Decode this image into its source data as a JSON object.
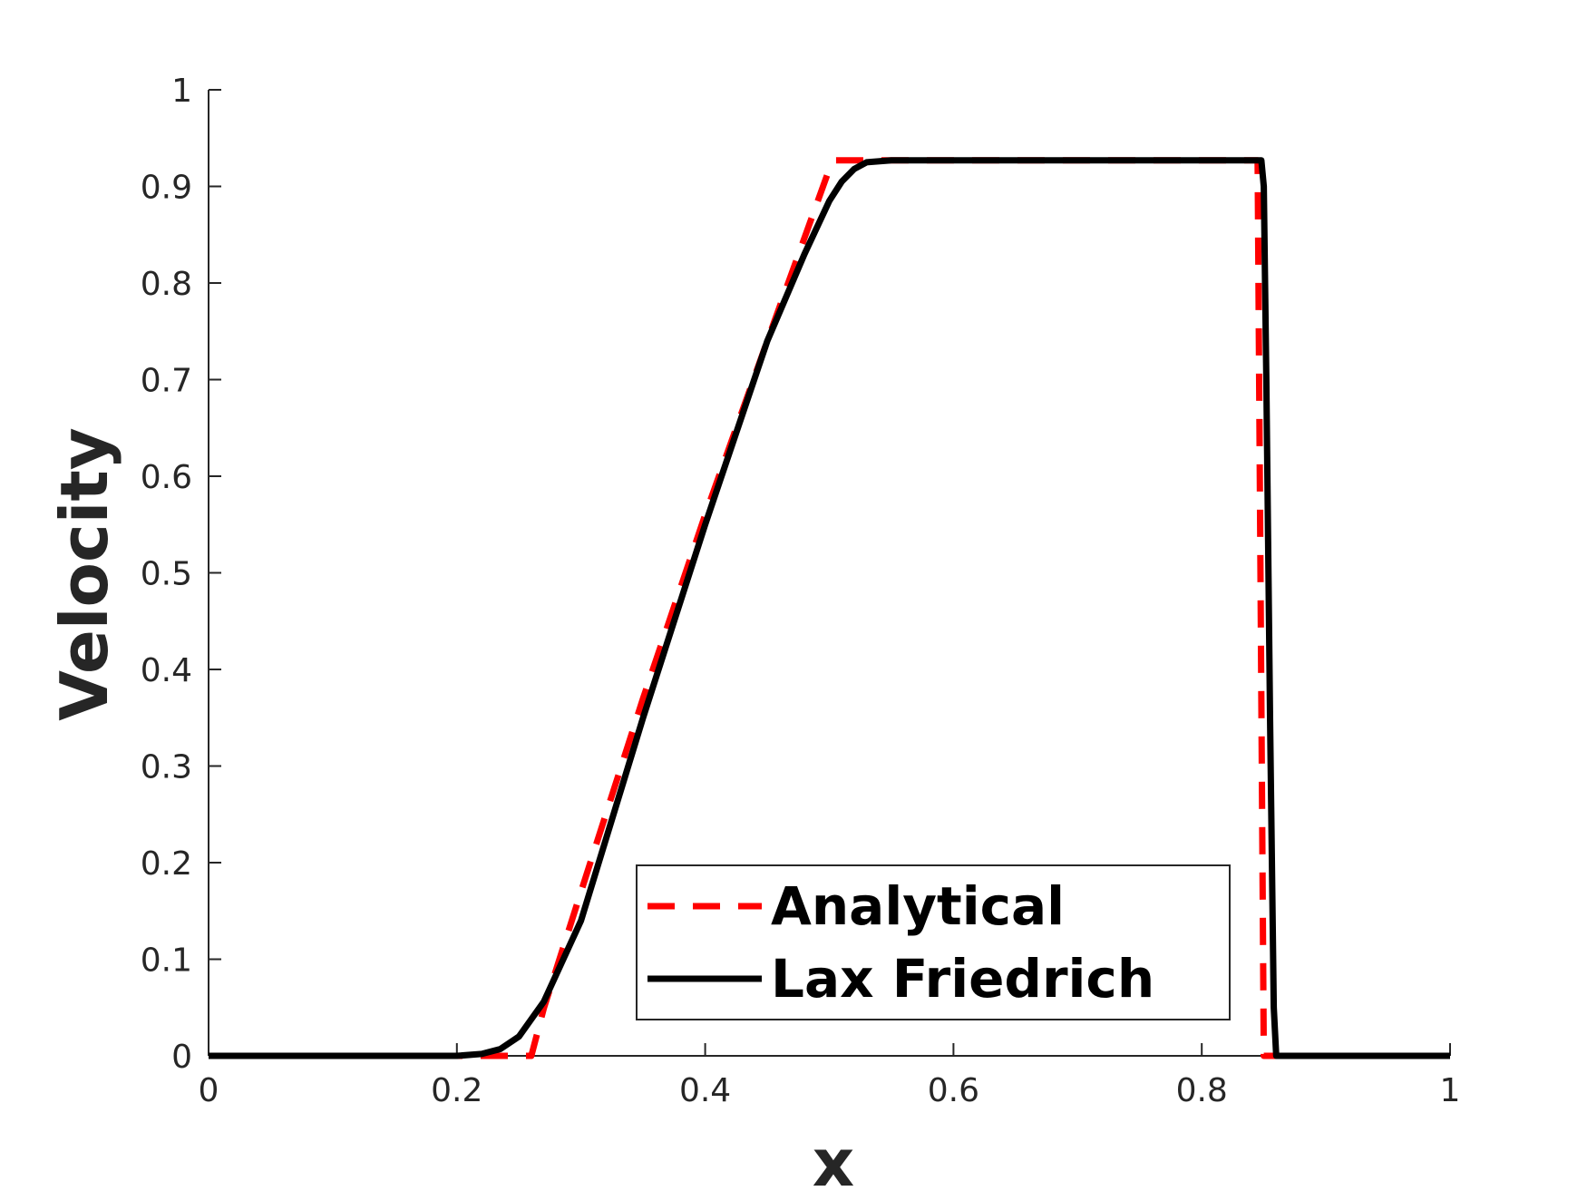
{
  "chart_data": {
    "type": "line",
    "xlabel": "x",
    "ylabel": "Velocity",
    "xlim": [
      0,
      1
    ],
    "ylim": [
      0,
      1
    ],
    "xticks": [
      "0",
      "0.2",
      "0.4",
      "0.6",
      "0.8",
      "1"
    ],
    "yticks": [
      "0",
      "0.1",
      "0.2",
      "0.3",
      "0.4",
      "0.5",
      "0.6",
      "0.7",
      "0.8",
      "0.9",
      "1"
    ],
    "grid": false,
    "legend_position": "lower-right",
    "series": [
      {
        "name": "Analytical",
        "color": "#ff0000",
        "style": "dashed",
        "x": [
          0.0,
          0.24,
          0.26,
          0.27,
          0.3,
          0.35,
          0.4,
          0.45,
          0.5,
          0.505,
          0.53,
          0.6,
          0.7,
          0.8,
          0.845,
          0.85,
          0.86,
          0.9,
          1.0
        ],
        "y": [
          0.0,
          0.0,
          0.0,
          0.049,
          0.17,
          0.37,
          0.56,
          0.74,
          0.918,
          0.927,
          0.927,
          0.927,
          0.927,
          0.927,
          0.927,
          0.0,
          0.0,
          0.0,
          0.0
        ]
      },
      {
        "name": "Lax Friedrich",
        "color": "#000000",
        "style": "solid",
        "x": [
          0.0,
          0.2,
          0.22,
          0.235,
          0.25,
          0.27,
          0.3,
          0.35,
          0.4,
          0.45,
          0.48,
          0.5,
          0.51,
          0.52,
          0.53,
          0.55,
          0.6,
          0.7,
          0.8,
          0.848,
          0.85,
          0.852,
          0.855,
          0.858,
          0.86,
          0.87,
          0.9,
          1.0
        ],
        "y": [
          0.0,
          0.0,
          0.002,
          0.007,
          0.02,
          0.056,
          0.14,
          0.35,
          0.55,
          0.74,
          0.83,
          0.885,
          0.905,
          0.918,
          0.925,
          0.927,
          0.927,
          0.927,
          0.927,
          0.927,
          0.9,
          0.7,
          0.35,
          0.05,
          0.0,
          0.0,
          0.0,
          0.0
        ]
      }
    ]
  }
}
